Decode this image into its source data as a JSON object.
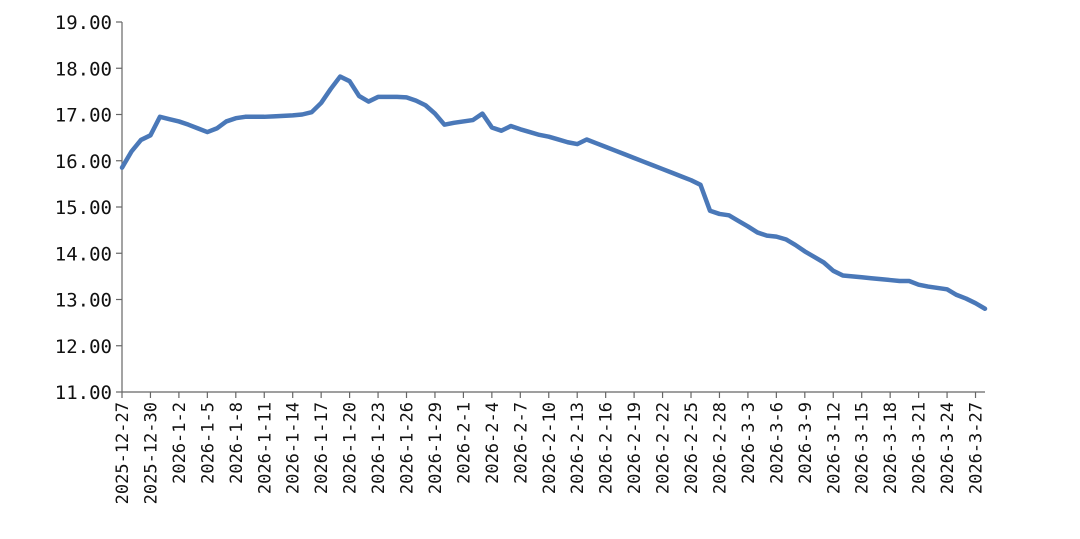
{
  "chart_data": {
    "type": "line",
    "title": "",
    "xlabel": "",
    "ylabel": "",
    "ylim": [
      11,
      19
    ],
    "y_ticks": [
      "11.00",
      "12.00",
      "13.00",
      "14.00",
      "15.00",
      "16.00",
      "17.00",
      "18.00",
      "19.00"
    ],
    "x_ticks": [
      "2025-12-27",
      "2025-12-30",
      "2026-1-2",
      "2026-1-5",
      "2026-1-8",
      "2026-1-11",
      "2026-1-14",
      "2026-1-17",
      "2026-1-20",
      "2026-1-23",
      "2026-1-26",
      "2026-1-29",
      "2026-2-1",
      "2026-2-4",
      "2026-2-7",
      "2026-2-10",
      "2026-2-13",
      "2026-2-16",
      "2026-2-19",
      "2026-2-22",
      "2026-2-25",
      "2026-2-28",
      "2026-3-3",
      "2026-3-6",
      "2026-3-9",
      "2026-3-12",
      "2026-3-15",
      "2026-3-18",
      "2026-3-21",
      "2026-3-24",
      "2026-3-27"
    ],
    "grid": false,
    "legend": "none",
    "line_color": "#4A78B8",
    "series": [
      {
        "x": [
          "2025-12-27",
          "2025-12-28",
          "2025-12-29",
          "2025-12-30",
          "2025-12-31",
          "2026-1-1",
          "2026-1-2",
          "2026-1-3",
          "2026-1-4",
          "2026-1-5",
          "2026-1-6",
          "2026-1-7",
          "2026-1-8",
          "2026-1-9",
          "2026-1-10",
          "2026-1-11",
          "2026-1-12",
          "2026-1-13",
          "2026-1-14",
          "2026-1-15",
          "2026-1-16",
          "2026-1-17",
          "2026-1-18",
          "2026-1-19",
          "2026-1-20",
          "2026-1-21",
          "2026-1-22",
          "2026-1-23",
          "2026-1-24",
          "2026-1-25",
          "2026-1-26",
          "2026-1-27",
          "2026-1-28",
          "2026-1-29",
          "2026-1-30",
          "2026-1-31",
          "2026-2-1",
          "2026-2-2",
          "2026-2-3",
          "2026-2-4",
          "2026-2-5",
          "2026-2-6",
          "2026-2-7",
          "2026-2-8",
          "2026-2-9",
          "2026-2-10",
          "2026-2-11",
          "2026-2-12",
          "2026-2-13",
          "2026-2-14",
          "2026-2-15",
          "2026-2-16",
          "2026-2-17",
          "2026-2-18",
          "2026-2-19",
          "2026-2-20",
          "2026-2-21",
          "2026-2-22",
          "2026-2-23",
          "2026-2-24",
          "2026-2-25",
          "2026-2-26",
          "2026-2-27",
          "2026-2-28",
          "2026-3-1",
          "2026-3-2",
          "2026-3-3",
          "2026-3-4",
          "2026-3-5",
          "2026-3-6",
          "2026-3-7",
          "2026-3-8",
          "2026-3-9",
          "2026-3-10",
          "2026-3-11",
          "2026-3-12",
          "2026-3-13",
          "2026-3-14",
          "2026-3-15",
          "2026-3-16",
          "2026-3-17",
          "2026-3-18",
          "2026-3-19",
          "2026-3-20",
          "2026-3-21",
          "2026-3-22",
          "2026-3-23",
          "2026-3-24",
          "2026-3-25",
          "2026-3-26",
          "2026-3-27",
          "2026-3-28"
        ],
        "values": [
          15.85,
          16.2,
          16.45,
          16.55,
          16.95,
          16.9,
          16.85,
          16.78,
          16.7,
          16.62,
          16.7,
          16.85,
          16.92,
          16.95,
          16.95,
          16.95,
          16.96,
          16.97,
          16.98,
          17.0,
          17.05,
          17.25,
          17.55,
          17.82,
          17.72,
          17.4,
          17.28,
          17.38,
          17.38,
          17.38,
          17.37,
          17.3,
          17.2,
          17.02,
          16.78,
          16.82,
          16.85,
          16.88,
          17.02,
          16.72,
          16.65,
          16.75,
          16.68,
          16.62,
          16.56,
          16.52,
          16.46,
          16.4,
          16.36,
          16.46,
          16.38,
          16.3,
          16.22,
          16.14,
          16.06,
          15.98,
          15.9,
          15.82,
          15.74,
          15.66,
          15.58,
          15.48,
          14.92,
          14.85,
          14.82,
          14.7,
          14.58,
          14.45,
          14.38,
          14.36,
          14.3,
          14.18,
          14.04,
          13.92,
          13.8,
          13.62,
          13.52,
          13.5,
          13.48,
          13.46,
          13.44,
          13.42,
          13.4,
          13.4,
          13.32,
          13.28,
          13.25,
          13.22,
          13.1,
          13.02,
          12.92,
          12.8
        ]
      }
    ]
  }
}
